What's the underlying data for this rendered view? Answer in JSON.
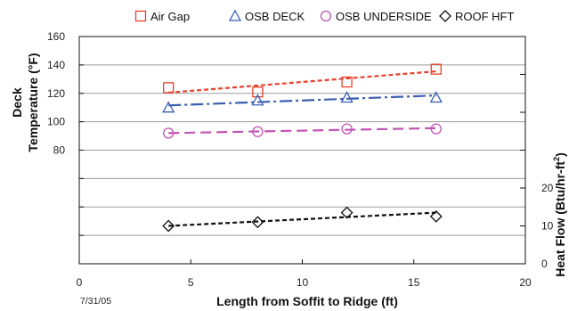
{
  "chart_data": {
    "type": "scatter",
    "xlabel": "Length from Soffit to Ridge (ft)",
    "ylabel_left": [
      "Deck",
      "Temperature (°F)"
    ],
    "ylabel_right": "Heat Flow (Btu/hr-ft",
    "ylabel_right_sup": "2",
    "ylabel_right_end": ")",
    "date_note": "7/31/05",
    "xlim": [
      0,
      20
    ],
    "x_ticks": [
      "0",
      "5",
      "10",
      "15",
      "20"
    ],
    "ylim_left": [
      0,
      160
    ],
    "y_left_ticks": [
      "80",
      "100",
      "120",
      "140",
      "160"
    ],
    "ylim_right": [
      0,
      60
    ],
    "y_right_ticks": [
      "0",
      "10",
      "20"
    ],
    "grid": true,
    "legend_position": "top",
    "series": [
      {
        "name": "Air Gap",
        "axis": "left",
        "marker": "square",
        "color": "#e8412c",
        "dash": "5,3",
        "x": [
          4,
          8,
          12,
          16
        ],
        "y": [
          124,
          121,
          128,
          137
        ],
        "fit": [
          120.5,
          135.5
        ]
      },
      {
        "name": "OSB DECK",
        "axis": "left",
        "marker": "triangle",
        "color": "#3a5fb0",
        "dash": "14,4,3,4",
        "x": [
          4,
          8,
          12,
          16
        ],
        "y": [
          110,
          115,
          117,
          117
        ],
        "fit": [
          111.5,
          118.5
        ]
      },
      {
        "name": "OSB UNDERSIDE",
        "axis": "left",
        "marker": "circle",
        "color": "#c254b4",
        "dash": "12,6",
        "x": [
          4,
          8,
          12,
          16
        ],
        "y": [
          92,
          93,
          95,
          95
        ],
        "fit": [
          92,
          95.5
        ]
      },
      {
        "name": "ROOF HFT",
        "axis": "right",
        "marker": "diamond",
        "color": "#111111",
        "dash": "5,3",
        "x": [
          4,
          8,
          12,
          16
        ],
        "y": [
          10,
          11,
          13.5,
          12.5
        ],
        "fit": [
          10,
          13.5
        ]
      }
    ]
  }
}
